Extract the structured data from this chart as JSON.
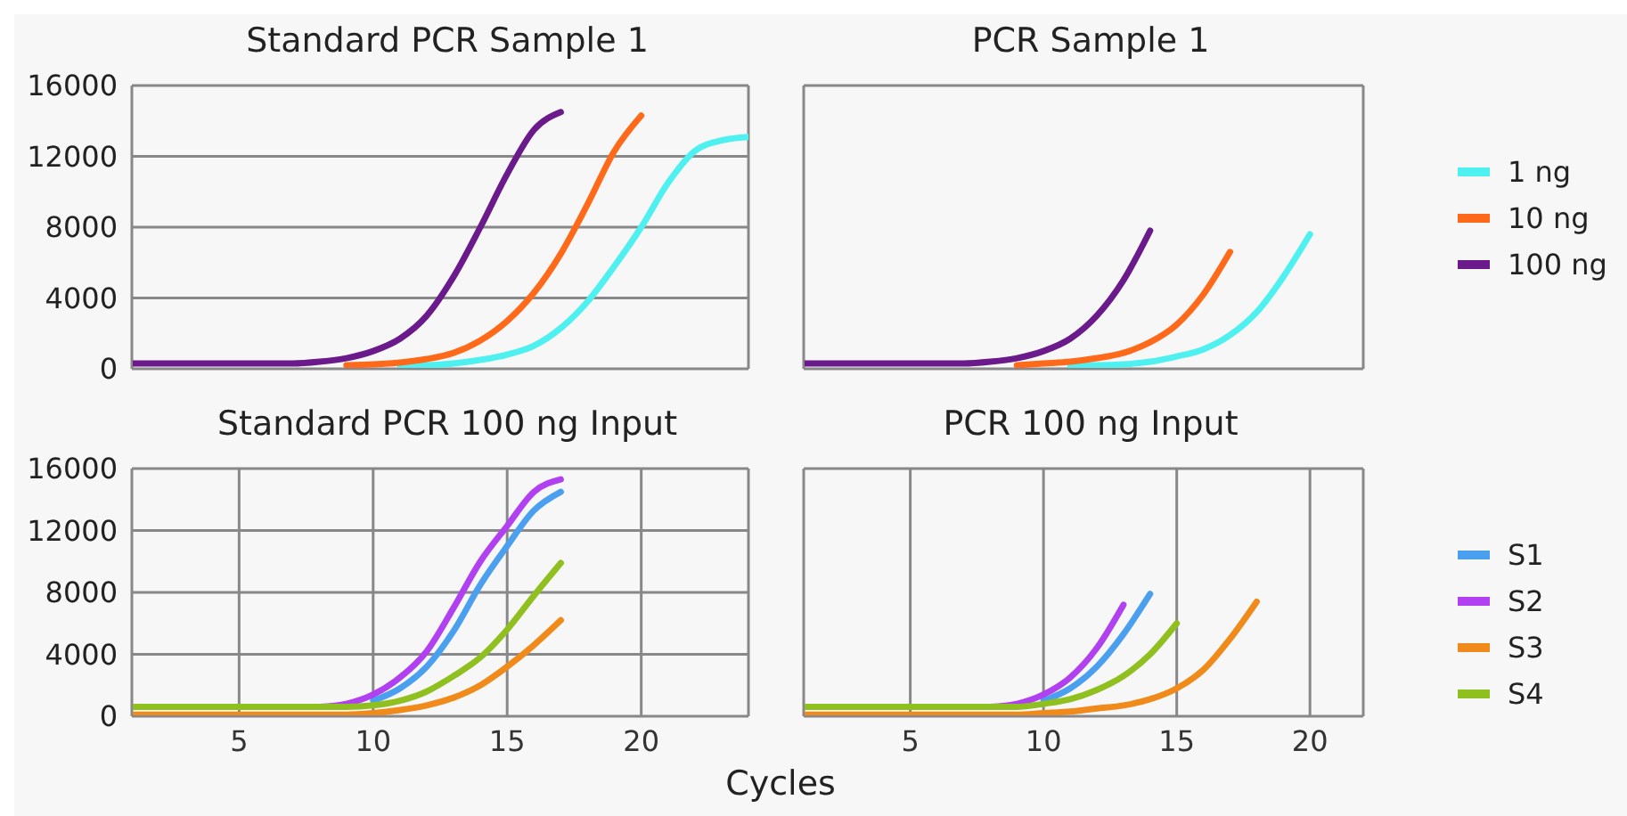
{
  "chart_data": [
    {
      "type": "line",
      "title": "Standard PCR Sample 1",
      "x": [
        1,
        2,
        3,
        4,
        5,
        6,
        7,
        8,
        9,
        10,
        11,
        12,
        13,
        14,
        15,
        16,
        17,
        18,
        19,
        20,
        21,
        22,
        23,
        24
      ],
      "xlim": [
        1,
        24
      ],
      "xticks": [
        5,
        10,
        15,
        20
      ],
      "ylim": [
        0,
        16000
      ],
      "yticks": [
        0,
        4000,
        8000,
        12000,
        16000
      ],
      "grid": true,
      "legend": false,
      "tick_labels": "y",
      "series": [
        {
          "color": "#4ef0f0",
          "values": [
            null,
            null,
            null,
            null,
            null,
            null,
            null,
            null,
            null,
            null,
            200,
            200,
            300,
            500,
            800,
            1300,
            2300,
            3800,
            5800,
            8000,
            10500,
            12300,
            12900,
            13100
          ]
        },
        {
          "color": "#ff6a1a",
          "values": [
            null,
            null,
            null,
            null,
            null,
            null,
            null,
            null,
            200,
            250,
            350,
            550,
            900,
            1600,
            2700,
            4300,
            6500,
            9300,
            12300,
            14300,
            null,
            null,
            null,
            null
          ]
        },
        {
          "color": "#6a1a8a",
          "values": [
            300,
            300,
            300,
            300,
            300,
            300,
            300,
            400,
            600,
            1000,
            1700,
            3000,
            5200,
            8000,
            11000,
            13500,
            14500,
            null,
            null,
            null,
            null,
            null,
            null,
            null
          ]
        }
      ]
    },
    {
      "type": "line",
      "title": "PCR Sample 1",
      "x": [
        1,
        2,
        3,
        4,
        5,
        6,
        7,
        8,
        9,
        10,
        11,
        12,
        13,
        14,
        15,
        16,
        17,
        18,
        19,
        20
      ],
      "xlim": [
        1,
        22
      ],
      "xticks": [
        5,
        10,
        15,
        20
      ],
      "ylim": [
        0,
        16000
      ],
      "yticks": [
        0,
        4000,
        8000,
        12000,
        16000
      ],
      "grid": true,
      "legend": "right",
      "tick_labels": false,
      "series": [
        {
          "name": "1 ng",
          "color": "#4ef0f0",
          "values": [
            null,
            null,
            null,
            null,
            null,
            null,
            null,
            null,
            null,
            null,
            200,
            200,
            250,
            400,
            700,
            1100,
            1900,
            3200,
            5200,
            7600
          ]
        },
        {
          "name": "10 ng",
          "color": "#ff6a1a",
          "values": [
            null,
            null,
            null,
            null,
            null,
            null,
            null,
            null,
            200,
            300,
            400,
            600,
            900,
            1500,
            2500,
            4200,
            6600,
            null,
            null,
            null
          ]
        },
        {
          "name": "100 ng",
          "color": "#6a1a8a",
          "values": [
            300,
            300,
            300,
            300,
            300,
            300,
            300,
            400,
            600,
            1000,
            1700,
            3000,
            5000,
            7800,
            null,
            null,
            null,
            null,
            null,
            null
          ]
        }
      ]
    },
    {
      "type": "line",
      "title": "Standard PCR 100 ng Input",
      "xlabel": "Cycles",
      "x": [
        1,
        2,
        3,
        4,
        5,
        6,
        7,
        8,
        9,
        10,
        11,
        12,
        13,
        14,
        15,
        16,
        17
      ],
      "xlim": [
        1,
        24
      ],
      "xticks": [
        5,
        10,
        15,
        20
      ],
      "ylim": [
        0,
        16000
      ],
      "yticks": [
        0,
        4000,
        8000,
        12000,
        16000
      ],
      "grid": true,
      "legend": false,
      "series": [
        {
          "color": "#4aa0ee",
          "values": [
            null,
            null,
            null,
            null,
            null,
            null,
            null,
            null,
            null,
            1000,
            1800,
            3200,
            5500,
            8500,
            11000,
            13300,
            14500
          ]
        },
        {
          "color": "#b040f0",
          "values": [
            null,
            null,
            null,
            null,
            null,
            null,
            null,
            600,
            800,
            1400,
            2500,
            4200,
            7000,
            10000,
            12300,
            14500,
            15300
          ]
        },
        {
          "color": "#f08a1a",
          "values": [
            100,
            100,
            100,
            100,
            100,
            100,
            100,
            100,
            100,
            200,
            400,
            700,
            1200,
            2000,
            3200,
            4600,
            6200
          ]
        },
        {
          "color": "#90c020",
          "values": [
            600,
            600,
            600,
            600,
            600,
            600,
            600,
            600,
            600,
            700,
            1000,
            1600,
            2600,
            3800,
            5600,
            7800,
            9900
          ]
        }
      ]
    },
    {
      "type": "line",
      "title": "PCR 100 ng Input",
      "x": [
        1,
        2,
        3,
        4,
        5,
        6,
        7,
        8,
        9,
        10,
        11,
        12,
        13,
        14,
        15,
        16,
        17,
        18
      ],
      "xlim": [
        1,
        22
      ],
      "xticks": [
        5,
        10,
        15,
        20
      ],
      "ylim": [
        0,
        16000
      ],
      "yticks": [
        0,
        4000,
        8000,
        12000,
        16000
      ],
      "grid": true,
      "legend": "right",
      "tick_labels": "x",
      "series": [
        {
          "name": "S1",
          "color": "#4aa0ee",
          "values": [
            null,
            null,
            null,
            null,
            null,
            null,
            null,
            null,
            null,
            1000,
            1800,
            3200,
            5300,
            7900,
            null,
            null,
            null,
            null
          ]
        },
        {
          "name": "S2",
          "color": "#b040f0",
          "values": [
            null,
            null,
            null,
            null,
            null,
            null,
            null,
            600,
            800,
            1400,
            2500,
            4400,
            7200,
            null,
            null,
            null,
            null,
            null
          ]
        },
        {
          "name": "S3",
          "color": "#f08a1a",
          "values": [
            100,
            100,
            100,
            100,
            100,
            100,
            100,
            100,
            100,
            200,
            300,
            500,
            700,
            1100,
            1800,
            3000,
            5000,
            7400
          ]
        },
        {
          "name": "S4",
          "color": "#90c020",
          "values": [
            600,
            600,
            600,
            600,
            600,
            600,
            600,
            600,
            600,
            800,
            1100,
            1700,
            2600,
            4000,
            6000,
            null,
            null,
            null
          ]
        }
      ]
    }
  ]
}
